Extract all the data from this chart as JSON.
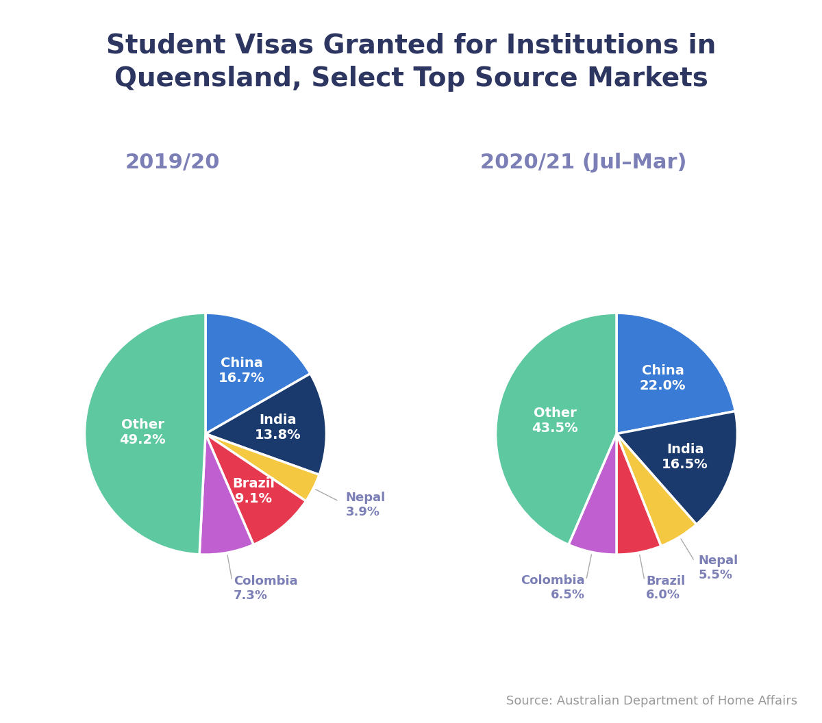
{
  "title": "Student Visas Granted for Institutions in\nQueensland, Select Top Source Markets",
  "title_color": "#2d3561",
  "title_fontsize": 28,
  "subtitle_left": "2019/20",
  "subtitle_right": "2020/21 (Jul–Mar)",
  "subtitle_color": "#7b7fb5",
  "subtitle_fontsize": 22,
  "source_text": "Source: Australian Department of Home Affairs",
  "source_color": "#999999",
  "source_fontsize": 13,
  "pie1": {
    "labels": [
      "China",
      "India",
      "Nepal",
      "Brazil",
      "Colombia",
      "Other"
    ],
    "values": [
      16.7,
      13.8,
      3.9,
      9.1,
      7.3,
      49.2
    ],
    "colors": [
      "#3a7bd5",
      "#1a3a6e",
      "#f5c842",
      "#e63950",
      "#c060d0",
      "#5ec8a0"
    ],
    "inside_labels": [
      "China\n16.7%",
      "India\n13.8%",
      "",
      "Brazil\n9.1%",
      "",
      "Other\n49.2%"
    ],
    "outside_labels_map": {
      "Nepal": "Nepal\n3.9%",
      "Colombia": "Colombia\n7.3%"
    }
  },
  "pie2": {
    "labels": [
      "China",
      "India",
      "Nepal",
      "Brazil",
      "Colombia",
      "Other"
    ],
    "values": [
      22.0,
      16.5,
      5.5,
      6.0,
      6.5,
      43.5
    ],
    "colors": [
      "#3a7bd5",
      "#1a3a6e",
      "#f5c842",
      "#e63950",
      "#c060d0",
      "#5ec8a0"
    ],
    "inside_labels": [
      "China\n22.0%",
      "India\n16.5%",
      "",
      "",
      "",
      "Other\n43.5%"
    ],
    "outside_labels_map": {
      "Nepal": "Nepal\n5.5%",
      "Brazil": "Brazil\n6.0%",
      "Colombia": "Colombia\n6.5%"
    }
  }
}
